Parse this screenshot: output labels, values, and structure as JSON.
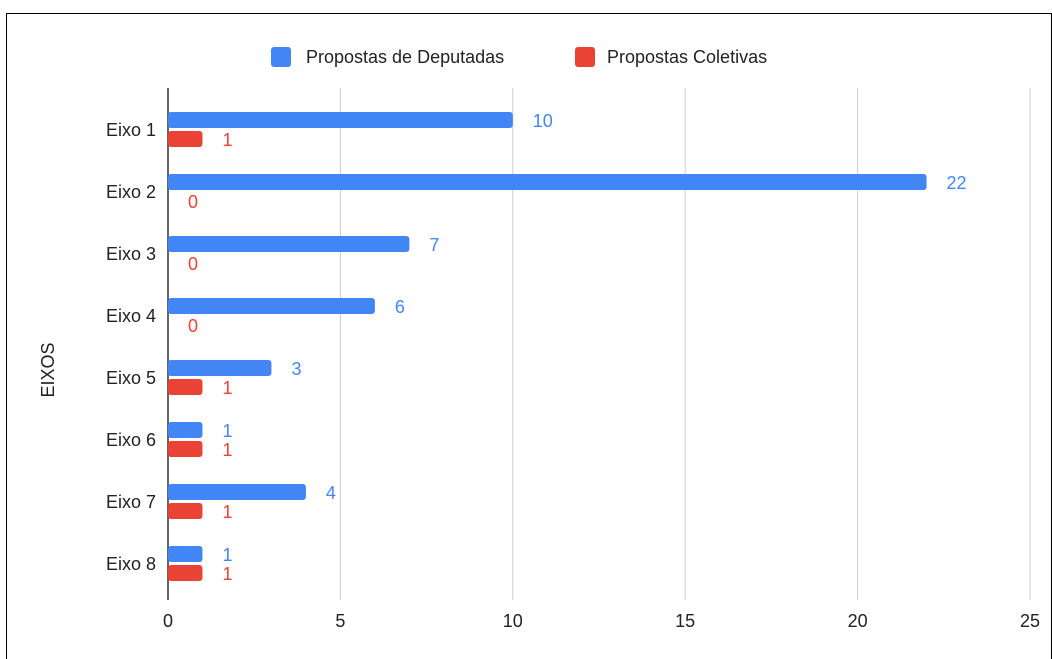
{
  "chart_data": {
    "type": "bar",
    "orientation": "horizontal",
    "title": "",
    "xlabel": "",
    "ylabel": "EIXOS",
    "categories": [
      "Eixo 1",
      "Eixo 2",
      "Eixo 3",
      "Eixo 4",
      "Eixo 5",
      "Eixo 6",
      "Eixo 7",
      "Eixo 8"
    ],
    "series": [
      {
        "name": "Propostas de Deputadas",
        "color": "#4285f4",
        "values": [
          10,
          22,
          7,
          6,
          3,
          1,
          4,
          1
        ]
      },
      {
        "name": "Propostas Coletivas",
        "color": "#ea4335",
        "values": [
          1,
          0,
          0,
          0,
          1,
          1,
          1,
          1
        ]
      }
    ],
    "xlim": [
      0,
      25
    ],
    "xticks": [
      0,
      5,
      10,
      15,
      20,
      25
    ],
    "grid": true,
    "legend_position": "top-center",
    "data_labels": true
  }
}
